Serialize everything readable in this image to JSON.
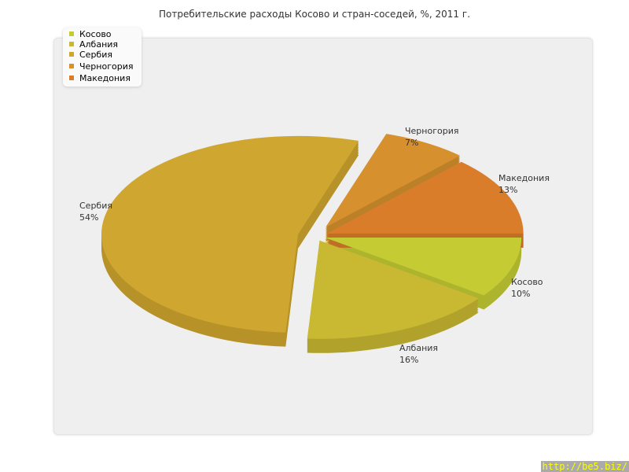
{
  "chart_data": {
    "type": "pie",
    "title": "Потребительские расходы Косово и стран-соседей, %, 2011 г.",
    "categories": [
      "Косово",
      "Албания",
      "Сербия",
      "Черногория",
      "Македония"
    ],
    "values": [
      10,
      16,
      54,
      7,
      13
    ],
    "value_labels": [
      "10%",
      "16%",
      "54%",
      "7%",
      "13%"
    ],
    "colors": [
      "#c5cc33",
      "#c9b832",
      "#cfa62f",
      "#d6912e",
      "#da7d2b"
    ],
    "legend_placement": "top-left",
    "style": "3d exploded"
  },
  "watermark": "http://be5.biz/"
}
